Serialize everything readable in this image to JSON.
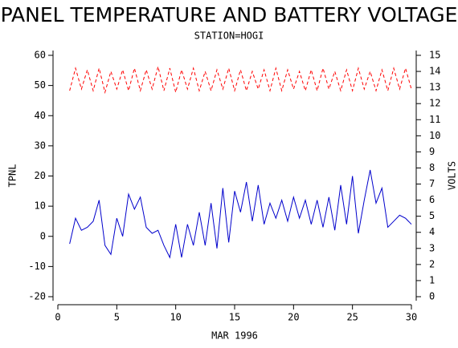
{
  "chart_data": {
    "type": "line",
    "title": "PANEL TEMPERATURE AND BATTERY VOLTAGE",
    "subtitle": "STATION=HOGI",
    "x_label": "MAR 1996",
    "y_label": "TPNL",
    "y2_label": "VOLTS",
    "x": [
      1,
      1.5,
      2,
      2.5,
      3,
      3.5,
      4,
      4.5,
      5,
      5.5,
      6,
      6.5,
      7,
      7.5,
      8,
      8.5,
      9,
      9.5,
      10,
      10.5,
      11,
      11.5,
      12,
      12.5,
      13,
      13.5,
      14,
      14.5,
      15,
      15.5,
      16,
      16.5,
      17,
      17.5,
      18,
      18.5,
      19,
      19.5,
      20,
      20.5,
      21,
      21.5,
      22,
      22.5,
      23,
      23.5,
      24,
      24.5,
      25,
      25.5,
      26,
      26.5,
      27,
      27.5,
      28,
      28.5,
      29,
      29.5,
      30
    ],
    "series": [
      {
        "color": "#0000cc",
        "values": [
          -2.5,
          6,
          2,
          3,
          5,
          12,
          -3,
          -6,
          6,
          0,
          14,
          9,
          13,
          3,
          1,
          2,
          -3,
          -7,
          4,
          -7,
          4,
          -3,
          8,
          -3,
          11,
          -4,
          16,
          -2,
          15,
          8,
          18,
          5,
          17,
          4,
          11,
          6,
          12,
          5,
          13,
          6,
          12,
          4,
          12,
          3,
          13,
          2,
          17,
          4,
          20,
          1,
          12,
          22,
          11,
          16,
          3,
          5,
          7,
          6,
          4
        ]
      },
      {
        "color": "#ff0000",
        "axis": "y2",
        "dashed": true,
        "values": [
          12.8,
          14.2,
          12.9,
          14.1,
          12.8,
          14.2,
          12.7,
          14.0,
          12.9,
          14.1,
          12.8,
          14.2,
          12.8,
          14.1,
          12.9,
          14.3,
          12.8,
          14.2,
          12.7,
          14.1,
          12.9,
          14.2,
          12.8,
          14.0,
          12.8,
          14.1,
          12.9,
          14.2,
          12.8,
          14.1,
          12.8,
          14.0,
          12.9,
          14.1,
          12.8,
          14.2,
          12.8,
          14.1,
          12.9,
          14.0,
          12.8,
          14.1,
          12.8,
          14.2,
          12.9,
          14.0,
          12.8,
          14.1,
          12.8,
          14.2,
          12.9,
          14.0,
          12.8,
          14.1,
          12.8,
          14.2,
          12.9,
          14.2,
          12.9
        ]
      }
    ],
    "xlim": [
      0,
      30
    ],
    "xticks": [
      0,
      5,
      10,
      15,
      20,
      25,
      30
    ],
    "ylim": [
      -20,
      60
    ],
    "yticks": [
      -20,
      -10,
      0,
      10,
      20,
      30,
      40,
      50,
      60
    ],
    "y2lim": [
      0,
      15
    ],
    "y2ticks": [
      0,
      1,
      2,
      3,
      4,
      5,
      6,
      7,
      8,
      9,
      10,
      11,
      12,
      13,
      14,
      15
    ]
  }
}
